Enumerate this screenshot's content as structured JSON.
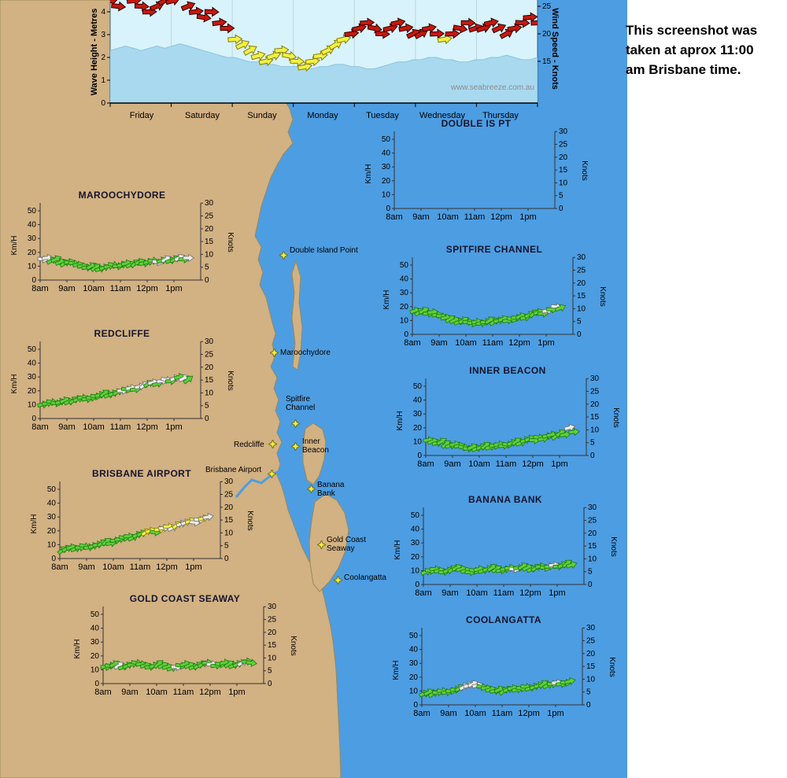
{
  "note": {
    "text": "This screenshot was taken at aprox 11:00 am Brisbane time."
  },
  "station_axis": {
    "left_label": "Km/H",
    "right_label": "Knots",
    "left_ticks": [
      "50",
      "40",
      "30",
      "20",
      "10",
      "0"
    ],
    "right_ticks": [
      "30",
      "25",
      "20",
      "15",
      "10",
      "5",
      "0"
    ],
    "x_ticks": [
      "8am",
      "9am",
      "10am",
      "11am",
      "12pm",
      "1pm"
    ]
  },
  "markers": [
    {
      "label": "Double Island Point",
      "lines": [
        "Double Island Point"
      ]
    },
    {
      "label": "Maroochydore",
      "lines": [
        "Maroochydore"
      ]
    },
    {
      "label": "Spitfire Channel",
      "lines": [
        "Spitfire",
        "Channel"
      ]
    },
    {
      "label": "Redcliffe",
      "lines": [
        "Redcliffe"
      ]
    },
    {
      "label": "Inner Beacon",
      "lines": [
        "Inner",
        "Beacon"
      ]
    },
    {
      "label": "Brisbane Airport",
      "lines": [
        "Brisbane Airport"
      ]
    },
    {
      "label": "Banana Bank",
      "lines": [
        "Banana",
        "Bank"
      ]
    },
    {
      "label": "Gold Coast Seaway",
      "lines": [
        "Gold Coast",
        "Seaway"
      ]
    },
    {
      "label": "Coolangatta",
      "lines": [
        "Coolangatta"
      ]
    }
  ],
  "colors": {
    "land": "#d2b183",
    "water": "#4d9de2",
    "coast_line": "#9a8a58",
    "chart_bg": "#d8f3fb",
    "wave_fill": "#a8d9ef",
    "arrow_green": "#5ecf3a",
    "arrow_green_stroke": "#1f7a10",
    "arrow_white": "#ececec",
    "arrow_white_stroke": "#6f6f6f",
    "arrow_yellow": "#f0f046",
    "arrow_yellow_stroke": "#8a7d00",
    "arrow_red": "#c8170d",
    "arrow_red_stroke": "#2a0000",
    "star_fill": "#f2ee3f",
    "star_stroke": "#6e6e12"
  },
  "chart_data": [
    {
      "type": "area+wind-arrows",
      "left_axis_label": "Wave Height - Metres",
      "right_axis_label": "Wind Speed - Knots",
      "left_ticks": [
        "4",
        "3",
        "2",
        "1",
        "0"
      ],
      "right_ticks": [
        "25",
        "20",
        "15"
      ],
      "categories_days": [
        "Friday",
        "Saturday",
        "Sunday",
        "Monday",
        "Tuesday",
        "Wednesday",
        "Thursday"
      ],
      "wave_ylim": [
        0,
        4.5
      ],
      "wind_visible_range_knots": [
        9,
        27
      ],
      "watermark": "www.seabreeze.com.au",
      "wave_height_m": [
        2.3,
        2.4,
        2.5,
        2.4,
        2.3,
        2.4,
        2.5,
        2.4,
        2.5,
        2.6,
        2.5,
        2.4,
        2.3,
        2.2,
        2.1,
        2.0,
        2.0,
        1.9,
        1.8,
        1.8,
        1.7,
        1.7,
        1.6,
        1.6,
        1.6,
        1.5,
        1.5,
        1.6,
        1.6,
        1.7,
        1.7,
        1.6,
        1.6,
        1.5,
        1.5,
        1.6,
        1.7,
        1.8,
        1.8,
        1.9,
        1.9,
        2.0,
        2.0,
        1.9,
        1.9,
        1.8,
        1.8,
        1.9,
        1.9,
        2.0,
        2.0,
        2.1,
        2.0,
        1.9,
        1.9,
        2.0
      ],
      "wind_speed_knots": [
        26,
        25,
        27,
        26,
        25,
        24,
        25,
        26,
        26,
        27,
        25,
        24,
        23,
        24,
        22,
        21,
        19,
        18,
        17,
        16,
        15,
        16,
        17,
        16,
        15,
        14,
        15,
        16,
        17,
        18,
        19,
        20,
        21,
        22,
        21,
        20,
        21,
        22,
        21,
        20,
        20,
        21,
        20,
        19,
        20,
        21,
        22,
        21,
        21,
        22,
        21,
        20,
        21,
        22,
        23,
        22
      ]
    },
    {
      "type": "wind-arrows",
      "title": "DOUBLE IS PT",
      "ylim_kmh": [
        0,
        50
      ],
      "values_kmh": [],
      "colors": ""
    },
    {
      "type": "wind-arrows",
      "title": "MAROOCHYDORE",
      "ylim_kmh": [
        0,
        50
      ],
      "values_kmh": [
        15,
        16,
        14,
        15,
        13,
        12,
        13,
        12,
        11,
        10,
        9,
        10,
        9,
        8,
        9,
        10,
        11,
        10,
        11,
        12,
        11,
        12,
        13,
        12,
        13,
        14,
        13,
        14,
        15,
        14,
        15,
        16,
        15,
        16
      ],
      "colors": "wwggggggggggggggggggggggggwgwggwgw"
    },
    {
      "type": "wind-arrows",
      "title": "SPITFIRE CHANNEL",
      "ylim_kmh": [
        0,
        50
      ],
      "values_kmh": [
        17,
        16,
        17,
        15,
        16,
        14,
        13,
        12,
        11,
        10,
        9,
        10,
        9,
        8,
        9,
        8,
        9,
        10,
        9,
        10,
        11,
        10,
        11,
        12,
        13,
        12,
        14,
        15,
        16,
        15,
        17,
        18,
        20,
        19
      ],
      "colors": "ggggggggggggggggggggggggggggggwgwg"
    },
    {
      "type": "wind-arrows",
      "title": "REDCLIFFE",
      "ylim_kmh": [
        0,
        50
      ],
      "values_kmh": [
        10,
        11,
        12,
        11,
        12,
        13,
        12,
        13,
        14,
        15,
        14,
        15,
        16,
        17,
        18,
        17,
        18,
        19,
        20,
        21,
        22,
        21,
        23,
        24,
        25,
        26,
        25,
        27,
        28,
        27,
        29,
        30,
        29,
        28
      ],
      "colors": "ggggggggggggggggggwgwgwwgwgwwgwgwg"
    },
    {
      "type": "wind-arrows",
      "title": "INNER BEACON",
      "ylim_kmh": [
        0,
        50
      ],
      "values_kmh": [
        11,
        10,
        9,
        10,
        8,
        7,
        8,
        7,
        6,
        5,
        6,
        5,
        6,
        7,
        6,
        7,
        8,
        7,
        8,
        9,
        10,
        9,
        11,
        12,
        11,
        13,
        12,
        14,
        15,
        14,
        16,
        15,
        20,
        17
      ],
      "colors": "ggggggggggggggggggggggggggggggggwg"
    },
    {
      "type": "wind-arrows",
      "title": "BRISBANE AIRPORT",
      "ylim_kmh": [
        0,
        50
      ],
      "values_kmh": [
        6,
        7,
        8,
        7,
        8,
        9,
        8,
        9,
        10,
        11,
        12,
        11,
        13,
        14,
        15,
        16,
        15,
        17,
        18,
        19,
        20,
        19,
        21,
        22,
        23,
        22,
        24,
        25,
        26,
        27,
        26,
        28,
        29,
        30
      ],
      "colors": "gggggggggggggggggggyygywywywwywwyw"
    },
    {
      "type": "wind-arrows",
      "title": "BANANA BANK",
      "ylim_kmh": [
        0,
        50
      ],
      "values_kmh": [
        9,
        10,
        11,
        10,
        9,
        10,
        11,
        12,
        11,
        10,
        9,
        10,
        11,
        10,
        11,
        12,
        11,
        10,
        11,
        12,
        11,
        12,
        13,
        12,
        11,
        12,
        13,
        12,
        13,
        14,
        13,
        14,
        15,
        14
      ],
      "colors": "ggggggggggggggggggggwggggggggwgggg"
    },
    {
      "type": "wind-arrows",
      "title": "GOLD COAST SEAWAY",
      "ylim_kmh": [
        0,
        50
      ],
      "values_kmh": [
        12,
        13,
        14,
        13,
        12,
        13,
        14,
        15,
        14,
        13,
        12,
        13,
        14,
        13,
        12,
        11,
        12,
        13,
        14,
        13,
        12,
        13,
        14,
        15,
        14,
        13,
        14,
        15,
        14,
        13,
        14,
        15,
        16,
        15
      ],
      "colors": "gggwggggggggggggwgggggggwggggggwgg"
    },
    {
      "type": "wind-arrows",
      "title": "COOLANGATTA",
      "ylim_kmh": [
        0,
        50
      ],
      "values_kmh": [
        8,
        9,
        8,
        9,
        10,
        9,
        10,
        11,
        12,
        13,
        14,
        15,
        14,
        13,
        12,
        11,
        10,
        11,
        10,
        11,
        12,
        11,
        12,
        13,
        12,
        13,
        14,
        15,
        14,
        15,
        16,
        15,
        16,
        17
      ],
      "colors": "gggggggggwwwwgggggggggggggggggwggg"
    }
  ]
}
